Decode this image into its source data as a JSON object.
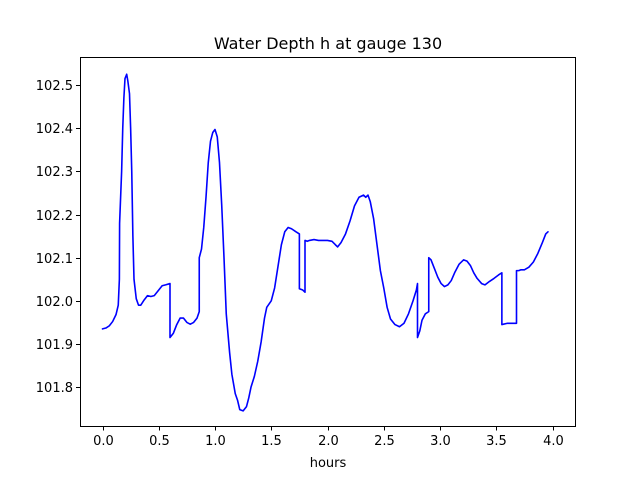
{
  "chart_data": {
    "type": "line",
    "title": "Water Depth h at gauge 130",
    "xlabel": "hours",
    "ylabel": "",
    "xlim": [
      -0.2,
      4.2
    ],
    "ylim": [
      101.71,
      102.565
    ],
    "xticks": [
      0.0,
      0.5,
      1.0,
      1.5,
      2.0,
      2.5,
      3.0,
      3.5,
      4.0
    ],
    "xtick_labels": [
      "0.0",
      "0.5",
      "1.0",
      "1.5",
      "2.0",
      "2.5",
      "3.0",
      "3.5",
      "4.0"
    ],
    "yticks": [
      101.8,
      101.9,
      102.0,
      102.1,
      102.2,
      102.3,
      102.4,
      102.5
    ],
    "ytick_labels": [
      "101.8",
      "101.9",
      "102.0",
      "102.1",
      "102.2",
      "102.3",
      "102.4",
      "102.5"
    ],
    "grid": false,
    "legend": "none",
    "series": [
      {
        "color": "#0000ff",
        "points": [
          [
            0.0,
            101.935
          ],
          [
            0.03,
            101.937
          ],
          [
            0.06,
            101.942
          ],
          [
            0.09,
            101.952
          ],
          [
            0.12,
            101.968
          ],
          [
            0.14,
            101.99
          ],
          [
            0.15,
            102.05
          ],
          [
            0.152,
            102.18
          ],
          [
            0.17,
            102.3
          ],
          [
            0.18,
            102.4
          ],
          [
            0.19,
            102.47
          ],
          [
            0.2,
            102.515
          ],
          [
            0.215,
            102.525
          ],
          [
            0.225,
            102.51
          ],
          [
            0.24,
            102.48
          ],
          [
            0.25,
            102.4
          ],
          [
            0.26,
            102.3
          ],
          [
            0.27,
            102.15
          ],
          [
            0.28,
            102.05
          ],
          [
            0.3,
            102.005
          ],
          [
            0.32,
            101.99
          ],
          [
            0.34,
            101.99
          ],
          [
            0.37,
            102.002
          ],
          [
            0.4,
            102.012
          ],
          [
            0.43,
            102.01
          ],
          [
            0.46,
            102.012
          ],
          [
            0.5,
            102.025
          ],
          [
            0.53,
            102.035
          ],
          [
            0.56,
            102.037
          ],
          [
            0.6,
            102.04
          ],
          [
            0.6,
            101.915
          ],
          [
            0.63,
            101.925
          ],
          [
            0.66,
            101.945
          ],
          [
            0.69,
            101.96
          ],
          [
            0.72,
            101.96
          ],
          [
            0.75,
            101.95
          ],
          [
            0.78,
            101.946
          ],
          [
            0.81,
            101.95
          ],
          [
            0.84,
            101.96
          ],
          [
            0.86,
            101.975
          ],
          [
            0.86,
            102.1
          ],
          [
            0.88,
            102.12
          ],
          [
            0.9,
            102.17
          ],
          [
            0.92,
            102.24
          ],
          [
            0.94,
            102.32
          ],
          [
            0.96,
            102.37
          ],
          [
            0.98,
            102.39
          ],
          [
            1.0,
            102.397
          ],
          [
            1.02,
            102.38
          ],
          [
            1.04,
            102.32
          ],
          [
            1.06,
            102.22
          ],
          [
            1.08,
            102.1
          ],
          [
            1.1,
            101.97
          ],
          [
            1.13,
            101.88
          ],
          [
            1.15,
            101.83
          ],
          [
            1.18,
            101.785
          ],
          [
            1.2,
            101.77
          ],
          [
            1.22,
            101.748
          ],
          [
            1.25,
            101.745
          ],
          [
            1.28,
            101.755
          ],
          [
            1.3,
            101.775
          ],
          [
            1.32,
            101.8
          ],
          [
            1.35,
            101.825
          ],
          [
            1.38,
            101.86
          ],
          [
            1.41,
            101.905
          ],
          [
            1.44,
            101.96
          ],
          [
            1.46,
            101.985
          ],
          [
            1.5,
            102.0
          ],
          [
            1.53,
            102.03
          ],
          [
            1.56,
            102.08
          ],
          [
            1.59,
            102.13
          ],
          [
            1.62,
            102.16
          ],
          [
            1.65,
            102.17
          ],
          [
            1.68,
            102.167
          ],
          [
            1.72,
            102.16
          ],
          [
            1.75,
            102.155
          ],
          [
            1.75,
            102.028
          ],
          [
            1.78,
            102.025
          ],
          [
            1.8,
            102.02
          ],
          [
            1.8,
            102.14
          ],
          [
            1.82,
            102.138
          ],
          [
            1.84,
            102.14
          ],
          [
            1.88,
            102.142
          ],
          [
            1.92,
            102.14
          ],
          [
            1.96,
            102.14
          ],
          [
            2.0,
            102.14
          ],
          [
            2.04,
            102.138
          ],
          [
            2.07,
            102.13
          ],
          [
            2.09,
            102.125
          ],
          [
            2.12,
            102.135
          ],
          [
            2.16,
            102.155
          ],
          [
            2.2,
            102.185
          ],
          [
            2.24,
            102.22
          ],
          [
            2.28,
            102.24
          ],
          [
            2.32,
            102.245
          ],
          [
            2.34,
            102.24
          ],
          [
            2.36,
            102.245
          ],
          [
            2.38,
            102.23
          ],
          [
            2.41,
            102.19
          ],
          [
            2.44,
            102.13
          ],
          [
            2.47,
            102.07
          ],
          [
            2.5,
            102.03
          ],
          [
            2.53,
            101.985
          ],
          [
            2.56,
            101.958
          ],
          [
            2.6,
            101.945
          ],
          [
            2.64,
            101.94
          ],
          [
            2.68,
            101.948
          ],
          [
            2.72,
            101.97
          ],
          [
            2.76,
            102.0
          ],
          [
            2.79,
            102.025
          ],
          [
            2.8,
            102.04
          ],
          [
            2.8,
            101.915
          ],
          [
            2.82,
            101.93
          ],
          [
            2.84,
            101.955
          ],
          [
            2.87,
            101.97
          ],
          [
            2.9,
            101.975
          ],
          [
            2.9,
            102.1
          ],
          [
            2.92,
            102.095
          ],
          [
            2.95,
            102.075
          ],
          [
            2.98,
            102.055
          ],
          [
            3.01,
            102.04
          ],
          [
            3.04,
            102.033
          ],
          [
            3.07,
            102.037
          ],
          [
            3.1,
            102.047
          ],
          [
            3.13,
            102.065
          ],
          [
            3.17,
            102.085
          ],
          [
            3.21,
            102.095
          ],
          [
            3.24,
            102.092
          ],
          [
            3.27,
            102.082
          ],
          [
            3.3,
            102.065
          ],
          [
            3.33,
            102.052
          ],
          [
            3.37,
            102.04
          ],
          [
            3.4,
            102.037
          ],
          [
            3.44,
            102.045
          ],
          [
            3.48,
            102.052
          ],
          [
            3.52,
            102.06
          ],
          [
            3.55,
            102.065
          ],
          [
            3.55,
            101.945
          ],
          [
            3.6,
            101.948
          ],
          [
            3.64,
            101.948
          ],
          [
            3.68,
            101.948
          ],
          [
            3.68,
            102.07
          ],
          [
            3.7,
            102.07
          ],
          [
            3.72,
            102.072
          ],
          [
            3.75,
            102.072
          ],
          [
            3.79,
            102.078
          ],
          [
            3.83,
            102.09
          ],
          [
            3.87,
            102.11
          ],
          [
            3.91,
            102.135
          ],
          [
            3.94,
            102.155
          ],
          [
            3.96,
            102.16
          ]
        ]
      }
    ]
  }
}
